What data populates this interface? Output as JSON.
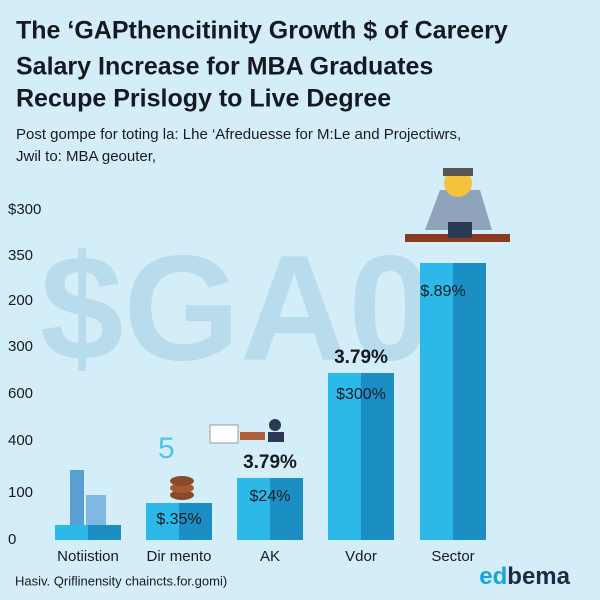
{
  "header": {
    "title_lines": [
      "The ‘GAPthencitinity Growth $ of Careery",
      "Salary Increase for MBA Graduates",
      "Recupe Prislogy to Live Degree"
    ],
    "subtitle_lines": [
      "Post gompe for toting la: Lhe ‘Afreduesse for M:Le and Projectiwrs,",
      "Jwil to: MBA geouter,"
    ]
  },
  "axis": {
    "labels": [
      "$300",
      "350",
      "200",
      "300",
      "600",
      "400",
      "100",
      "0"
    ]
  },
  "bars": [
    {
      "category": "Notiistion"
    },
    {
      "category": "Dir mento",
      "label": "$.35%"
    },
    {
      "category": "AK",
      "label": "$24%",
      "top_label": "3.79%"
    },
    {
      "category": "Vdor",
      "label": "$300%",
      "top_label": "3.79%"
    },
    {
      "category": "Sector",
      "label": "$.89%"
    }
  ],
  "watermark": "$GA0",
  "footer": {
    "note": "Hasiv. Qriflinensity chaincts.for.gomi)",
    "brand_a": "ed",
    "brand_b": "bema"
  }
}
